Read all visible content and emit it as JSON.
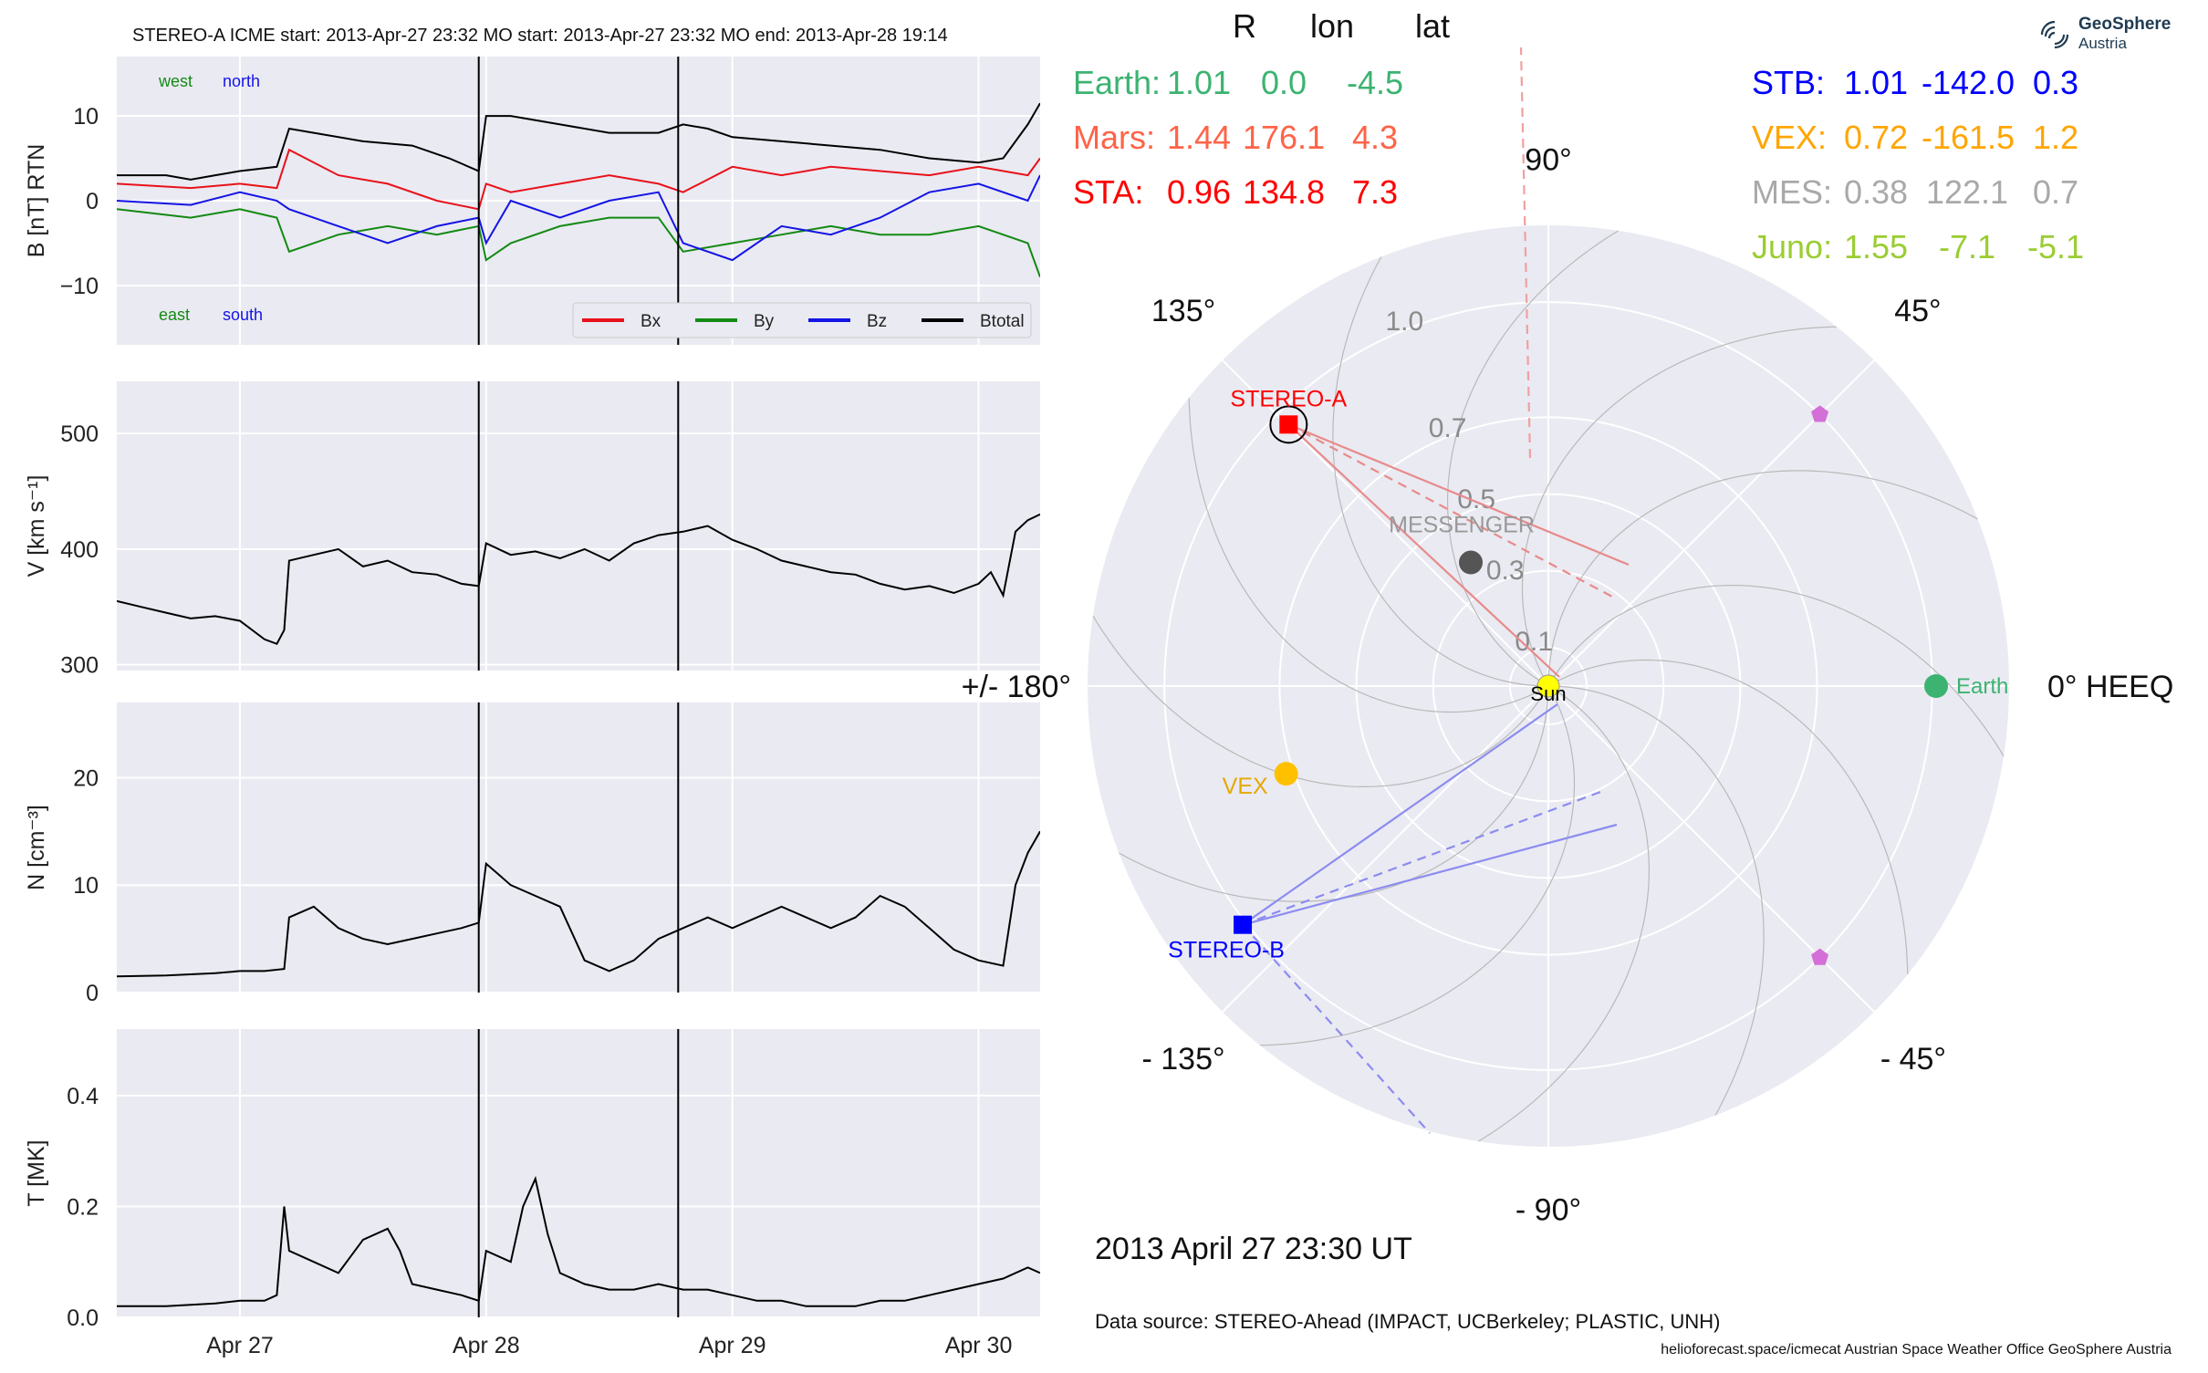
{
  "header": {
    "title": "STEREO-A    ICME start: 2013-Apr-27 23:32   MO start: 2013-Apr-27 23:32   MO end: 2013-Apr-28 19:14"
  },
  "chart_data": [
    {
      "type": "line",
      "ylabel": "B [nT] RTN",
      "ylim": [
        -17,
        17
      ],
      "yticks": [
        10,
        0,
        -10
      ],
      "ytick_labels": [
        "10",
        "0",
        "−10"
      ],
      "xlim": [
        -0.5,
        3.25
      ],
      "xticks": [
        0,
        1,
        2,
        3
      ],
      "grid": true,
      "annotations": {
        "west": "west",
        "north": "north",
        "east": "east",
        "south": "south"
      },
      "legend": {
        "position": "lower-right",
        "entries": [
          "Bx",
          "By",
          "Bz",
          "Btotal"
        ]
      },
      "colors": {
        "Bx": "#e8121a",
        "By": "#138a13",
        "Bz": "#1414e6",
        "Btotal": "#000000",
        "west": "#138a13",
        "north": "#1414e6",
        "east": "#138a13",
        "south": "#1414e6"
      },
      "series": [
        {
          "name": "Btotal",
          "x": [
            -0.5,
            -0.3,
            -0.2,
            -0.1,
            0.0,
            0.15,
            0.2,
            0.3,
            0.5,
            0.7,
            0.85,
            0.97,
            1.0,
            1.1,
            1.3,
            1.5,
            1.7,
            1.8,
            1.9,
            2.0,
            2.2,
            2.4,
            2.6,
            2.8,
            3.0,
            3.1,
            3.2,
            3.25
          ],
          "y": [
            3,
            3,
            2.5,
            3,
            3.5,
            4,
            8.5,
            8,
            7,
            6.5,
            5,
            3.5,
            10,
            10,
            9,
            8,
            8,
            9,
            8.5,
            7.5,
            7,
            6.5,
            6,
            5,
            4.5,
            5,
            9,
            11.5
          ]
        },
        {
          "name": "Bx",
          "x": [
            -0.5,
            -0.2,
            0.0,
            0.15,
            0.2,
            0.4,
            0.6,
            0.8,
            0.97,
            1.0,
            1.1,
            1.3,
            1.5,
            1.7,
            1.8,
            2.0,
            2.2,
            2.4,
            2.6,
            2.8,
            3.0,
            3.2,
            3.25
          ],
          "y": [
            2,
            1.5,
            2,
            1.5,
            6,
            3,
            2,
            0,
            -1,
            2,
            1,
            2,
            3,
            2,
            1,
            4,
            3,
            4,
            3.5,
            3,
            4,
            3,
            5
          ]
        },
        {
          "name": "By",
          "x": [
            -0.5,
            -0.2,
            0.0,
            0.15,
            0.2,
            0.4,
            0.6,
            0.8,
            0.97,
            1.0,
            1.1,
            1.3,
            1.5,
            1.7,
            1.8,
            2.0,
            2.2,
            2.4,
            2.6,
            2.8,
            3.0,
            3.2,
            3.25
          ],
          "y": [
            -1,
            -2,
            -1,
            -2,
            -6,
            -4,
            -3,
            -4,
            -3,
            -7,
            -5,
            -3,
            -2,
            -2,
            -6,
            -5,
            -4,
            -3,
            -4,
            -4,
            -3,
            -5,
            -9
          ]
        },
        {
          "name": "Bz",
          "x": [
            -0.5,
            -0.2,
            0.0,
            0.15,
            0.2,
            0.4,
            0.6,
            0.8,
            0.97,
            1.0,
            1.1,
            1.3,
            1.5,
            1.7,
            1.8,
            2.0,
            2.2,
            2.4,
            2.6,
            2.8,
            3.0,
            3.2,
            3.25
          ],
          "y": [
            0,
            -0.5,
            1,
            0,
            -1,
            -3,
            -5,
            -3,
            -2,
            -5,
            0,
            -2,
            0,
            1,
            -5,
            -7,
            -3,
            -4,
            -2,
            1,
            2,
            0,
            3
          ]
        }
      ]
    },
    {
      "type": "line",
      "ylabel": "V [km s⁻¹]",
      "ylim": [
        295,
        545
      ],
      "yticks": [
        500,
        400,
        300
      ],
      "ytick_labels": [
        "500",
        "400",
        "300"
      ],
      "xlim": [
        -0.5,
        3.25
      ],
      "xticks": [
        0,
        1,
        2,
        3
      ],
      "grid": true,
      "series": [
        {
          "name": "V",
          "x": [
            -0.5,
            -0.4,
            -0.3,
            -0.2,
            -0.1,
            0.0,
            0.1,
            0.15,
            0.18,
            0.2,
            0.3,
            0.4,
            0.5,
            0.6,
            0.7,
            0.8,
            0.9,
            0.97,
            1.0,
            1.1,
            1.2,
            1.3,
            1.4,
            1.5,
            1.6,
            1.7,
            1.8,
            1.9,
            2.0,
            2.1,
            2.2,
            2.3,
            2.4,
            2.5,
            2.6,
            2.7,
            2.8,
            2.9,
            3.0,
            3.05,
            3.1,
            3.15,
            3.2,
            3.25
          ],
          "y": [
            355,
            350,
            345,
            340,
            342,
            338,
            322,
            318,
            330,
            390,
            395,
            400,
            385,
            390,
            380,
            378,
            370,
            368,
            405,
            395,
            398,
            392,
            400,
            390,
            405,
            412,
            415,
            420,
            408,
            400,
            390,
            385,
            380,
            378,
            370,
            365,
            368,
            362,
            370,
            380,
            360,
            415,
            425,
            430
          ]
        }
      ]
    },
    {
      "type": "line",
      "ylabel": "N [cm⁻³]",
      "ylim": [
        0,
        27
      ],
      "yticks": [
        20,
        10,
        0
      ],
      "ytick_labels": [
        "20",
        "10",
        "0"
      ],
      "xlim": [
        -0.5,
        3.25
      ],
      "xticks": [
        0,
        1,
        2,
        3
      ],
      "grid": true,
      "series": [
        {
          "name": "N",
          "x": [
            -0.5,
            -0.3,
            -0.1,
            0.0,
            0.1,
            0.18,
            0.2,
            0.3,
            0.4,
            0.5,
            0.6,
            0.7,
            0.8,
            0.9,
            0.97,
            1.0,
            1.05,
            1.1,
            1.2,
            1.3,
            1.4,
            1.5,
            1.6,
            1.7,
            1.8,
            1.9,
            2.0,
            2.1,
            2.2,
            2.3,
            2.4,
            2.5,
            2.6,
            2.7,
            2.8,
            2.9,
            3.0,
            3.1,
            3.15,
            3.2,
            3.25
          ],
          "y": [
            1.5,
            1.6,
            1.8,
            2,
            2,
            2.2,
            7,
            8,
            6,
            5,
            4.5,
            5,
            5.5,
            6,
            6.5,
            12,
            11,
            10,
            9,
            8,
            3,
            2,
            3,
            5,
            6,
            7,
            6,
            7,
            8,
            7,
            6,
            7,
            9,
            8,
            6,
            4,
            3,
            2.5,
            10,
            13,
            15
          ]
        }
      ]
    },
    {
      "type": "line",
      "ylabel": "T [MK]",
      "ylim": [
        0,
        0.52
      ],
      "yticks": [
        0.4,
        0.2,
        0.0
      ],
      "ytick_labels": [
        "0.4",
        "0.2",
        "0.0"
      ],
      "xlim": [
        -0.5,
        3.25
      ],
      "xticks": [
        0,
        1,
        2,
        3
      ],
      "xtick_labels": [
        "Apr 27",
        "Apr 28",
        "Apr 29",
        "Apr 30"
      ],
      "grid": true,
      "series": [
        {
          "name": "T",
          "x": [
            -0.5,
            -0.3,
            -0.1,
            0.0,
            0.1,
            0.15,
            0.18,
            0.2,
            0.3,
            0.4,
            0.5,
            0.6,
            0.65,
            0.7,
            0.8,
            0.9,
            0.97,
            1.0,
            1.1,
            1.15,
            1.2,
            1.25,
            1.3,
            1.4,
            1.5,
            1.6,
            1.7,
            1.8,
            1.9,
            2.0,
            2.1,
            2.2,
            2.3,
            2.4,
            2.5,
            2.6,
            2.7,
            2.8,
            2.9,
            3.0,
            3.1,
            3.2,
            3.25
          ],
          "y": [
            0.02,
            0.02,
            0.025,
            0.03,
            0.03,
            0.04,
            0.2,
            0.12,
            0.1,
            0.08,
            0.14,
            0.16,
            0.12,
            0.06,
            0.05,
            0.04,
            0.03,
            0.12,
            0.1,
            0.2,
            0.25,
            0.15,
            0.08,
            0.06,
            0.05,
            0.05,
            0.06,
            0.05,
            0.05,
            0.04,
            0.03,
            0.03,
            0.02,
            0.02,
            0.02,
            0.03,
            0.03,
            0.04,
            0.05,
            0.06,
            0.07,
            0.09,
            0.08
          ]
        }
      ]
    },
    {
      "type": "scatter",
      "projection": "polar",
      "angle_labels": [
        "0° HEEQ",
        "45°",
        "90°",
        "135°",
        "+/- 180°",
        "- 135°",
        "- 90°",
        "- 45°"
      ],
      "angle_values": [
        0,
        45,
        90,
        135,
        180,
        -135,
        -90,
        -45
      ],
      "radial_ticks": [
        0.1,
        0.3,
        0.5,
        0.7,
        1.0
      ],
      "radial_labels": [
        "0.1",
        "0.3",
        "0.5",
        "0.7",
        "1.0"
      ],
      "rmax": 1.2,
      "grid": true,
      "bodies": [
        {
          "name": "Sun",
          "r": 0.0,
          "lon": 0.0,
          "color": "#ffff00"
        },
        {
          "name": "Earth",
          "r": 1.01,
          "lon": 0.0,
          "color": "#3cb371"
        },
        {
          "name": "STEREO-A",
          "r": 0.96,
          "lon": 134.8,
          "color": "#ff0000"
        },
        {
          "name": "STEREO-B",
          "r": 1.01,
          "lon": -142.0,
          "color": "#0000ff"
        },
        {
          "name": "VEX",
          "r": 0.72,
          "lon": -161.5,
          "color": "#ffc000"
        },
        {
          "name": "MESSENGER",
          "r": 0.38,
          "lon": 122.1,
          "color": "#555555"
        },
        {
          "name": "",
          "r": 1.0,
          "lon": 45.0,
          "color": "#d36fd6"
        },
        {
          "name": "",
          "r": 1.0,
          "lon": -45.0,
          "color": "#d36fd6"
        }
      ]
    }
  ],
  "positions_table": {
    "headers": [
      "R",
      "lon",
      "lat"
    ],
    "left": [
      {
        "label": "Earth:",
        "R": "1.01",
        "lon": "0.0",
        "lat": "-4.5",
        "color": "#3cb371"
      },
      {
        "label": "Mars:",
        "R": "1.44",
        "lon": "176.1",
        "lat": "4.3",
        "color": "#ff6347"
      },
      {
        "label": "STA:",
        "R": "0.96",
        "lon": "134.8",
        "lat": "7.3",
        "color": "#ff0000"
      }
    ],
    "right": [
      {
        "label": "STB:",
        "R": "1.01",
        "lon": "-142.0",
        "lat": "0.3",
        "color": "#0000ff"
      },
      {
        "label": "VEX:",
        "R": "0.72",
        "lon": "-161.5",
        "lat": "1.2",
        "color": "#ffa500"
      },
      {
        "label": "MES:",
        "R": "0.38",
        "lon": "122.1",
        "lat": "0.7",
        "color": "#a9a9a9"
      },
      {
        "label": "Juno:",
        "R": "1.55",
        "lon": "-7.1",
        "lat": "-5.1",
        "color": "#9acd32"
      }
    ]
  },
  "logo": {
    "line1": "GeoSphere",
    "line2": "Austria"
  },
  "datetime": "2013 April 27  23:30 UT",
  "data_source": "Data source: STEREO-Ahead (IMPACT, UCBerkeley; PLASTIC, UNH)",
  "footer": "helioforecast.space/icmecat   Austrian Space Weather Office   GeoSphere Austria"
}
